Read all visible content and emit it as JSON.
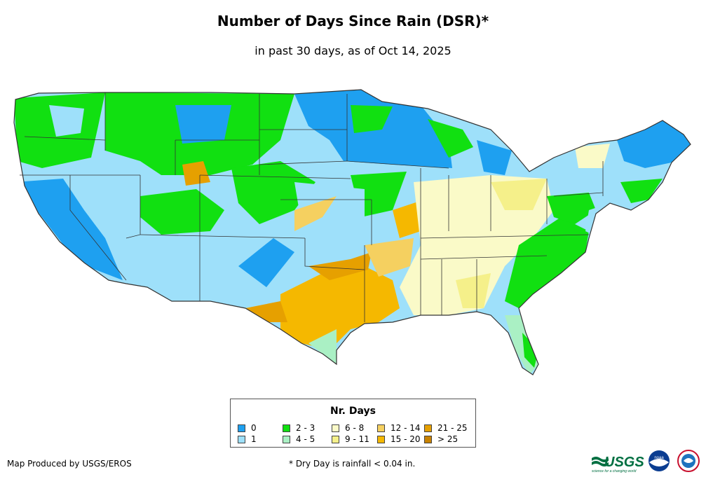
{
  "header": {
    "title": "Number of Days Since Rain (DSR)*",
    "subtitle": "in past 30 days, as of Oct 14, 2025"
  },
  "legend": {
    "title": "Nr. Days",
    "items": [
      {
        "label": "0",
        "color": "#1ea0f0"
      },
      {
        "label": "1",
        "color": "#9ee0fa"
      },
      {
        "label": "2 - 3",
        "color": "#11e011"
      },
      {
        "label": "4 - 5",
        "color": "#aaf0c4"
      },
      {
        "label": "6 - 8",
        "color": "#fafac8"
      },
      {
        "label": "9 - 11",
        "color": "#f5f08a"
      },
      {
        "label": "12 - 14",
        "color": "#f5d060"
      },
      {
        "label": "15 - 20",
        "color": "#f5b800"
      },
      {
        "label": "21 - 25",
        "color": "#e6a000"
      },
      {
        "label": "> 25",
        "color": "#c88200"
      }
    ]
  },
  "footer": {
    "credit": "Map Produced by USGS/EROS",
    "footnote": "* Dry Day is rainfall < 0.04 in.",
    "logos": {
      "usgs": "USGS",
      "usgs_tagline": "science for a changing world",
      "noaa": "noaa"
    }
  }
}
